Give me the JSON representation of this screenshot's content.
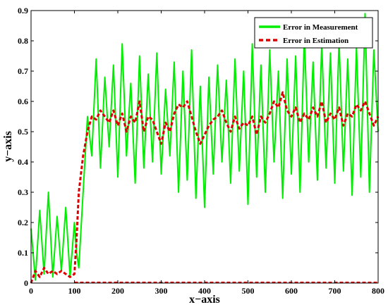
{
  "chart_data": {
    "type": "line",
    "xlabel": "x−axis",
    "ylabel": "y−axis",
    "xlim": [
      0,
      800
    ],
    "ylim": [
      0,
      0.9
    ],
    "grid": false,
    "legend_position": "top-right",
    "x_ticks": [
      0,
      100,
      200,
      300,
      400,
      500,
      600,
      700,
      800
    ],
    "x_tick_labels": [
      "0",
      "100",
      "200",
      "300",
      "400",
      "500",
      "600",
      "700",
      "800"
    ],
    "y_ticks": [
      0,
      0.1,
      0.2,
      0.3,
      0.4,
      0.5,
      0.6,
      0.7,
      0.8,
      0.9
    ],
    "y_tick_labels": [
      "0",
      "0.1",
      "0.2",
      "0.3",
      "0.4",
      "0.5",
      "0.6",
      "0.7",
      "0.8",
      "0.9"
    ],
    "series": [
      {
        "name": "Error in Measurement",
        "color": "#00ee00",
        "style": "solid",
        "x": [
          0,
          10,
          20,
          30,
          40,
          50,
          60,
          70,
          80,
          90,
          100,
          105,
          110,
          120,
          130,
          140,
          150,
          160,
          170,
          180,
          190,
          200,
          210,
          220,
          230,
          240,
          250,
          260,
          270,
          280,
          290,
          300,
          310,
          320,
          330,
          340,
          350,
          360,
          370,
          380,
          390,
          400,
          410,
          420,
          430,
          440,
          450,
          460,
          470,
          480,
          490,
          500,
          510,
          520,
          530,
          540,
          550,
          560,
          570,
          580,
          590,
          600,
          610,
          620,
          630,
          640,
          650,
          660,
          670,
          680,
          690,
          700,
          710,
          720,
          730,
          740,
          750,
          760,
          770,
          780,
          790,
          800
        ],
        "y": [
          0.18,
          0.01,
          0.24,
          0.03,
          0.3,
          0.02,
          0.22,
          0.04,
          0.25,
          0.02,
          0.2,
          0.1,
          0.05,
          0.3,
          0.55,
          0.42,
          0.74,
          0.38,
          0.68,
          0.45,
          0.72,
          0.35,
          0.79,
          0.42,
          0.66,
          0.33,
          0.75,
          0.38,
          0.69,
          0.4,
          0.76,
          0.36,
          0.64,
          0.42,
          0.73,
          0.3,
          0.7,
          0.34,
          0.77,
          0.28,
          0.65,
          0.25,
          0.68,
          0.36,
          0.72,
          0.4,
          0.67,
          0.33,
          0.74,
          0.37,
          0.7,
          0.26,
          0.79,
          0.35,
          0.72,
          0.3,
          0.77,
          0.4,
          0.7,
          0.28,
          0.74,
          0.36,
          0.75,
          0.3,
          0.82,
          0.4,
          0.73,
          0.34,
          0.79,
          0.38,
          0.76,
          0.33,
          0.8,
          0.37,
          0.74,
          0.29,
          0.78,
          0.35,
          0.89,
          0.3,
          0.77,
          0.5
        ]
      },
      {
        "name": "Error in Estimation",
        "color": "#dd0000",
        "style": "dashed",
        "x": [
          0,
          10,
          20,
          30,
          40,
          50,
          60,
          70,
          80,
          90,
          100,
          105,
          110,
          120,
          130,
          140,
          150,
          160,
          170,
          180,
          190,
          200,
          210,
          220,
          230,
          240,
          250,
          260,
          270,
          280,
          290,
          300,
          310,
          320,
          330,
          340,
          350,
          360,
          370,
          380,
          390,
          400,
          410,
          420,
          430,
          440,
          450,
          460,
          470,
          480,
          490,
          500,
          510,
          520,
          530,
          540,
          550,
          560,
          570,
          580,
          590,
          600,
          610,
          620,
          630,
          640,
          650,
          660,
          670,
          680,
          690,
          700,
          710,
          720,
          730,
          740,
          750,
          760,
          770,
          780,
          790,
          800
        ],
        "y": [
          0.0,
          0.04,
          0.02,
          0.05,
          0.03,
          0.04,
          0.03,
          0.04,
          0.03,
          0.02,
          0.03,
          0.15,
          0.3,
          0.42,
          0.5,
          0.55,
          0.54,
          0.57,
          0.55,
          0.53,
          0.57,
          0.52,
          0.56,
          0.5,
          0.55,
          0.53,
          0.6,
          0.5,
          0.55,
          0.54,
          0.5,
          0.46,
          0.53,
          0.5,
          0.56,
          0.59,
          0.58,
          0.6,
          0.55,
          0.5,
          0.46,
          0.49,
          0.52,
          0.54,
          0.55,
          0.57,
          0.53,
          0.5,
          0.55,
          0.51,
          0.53,
          0.52,
          0.55,
          0.49,
          0.55,
          0.53,
          0.56,
          0.6,
          0.58,
          0.63,
          0.57,
          0.55,
          0.58,
          0.53,
          0.56,
          0.54,
          0.58,
          0.55,
          0.6,
          0.53,
          0.56,
          0.54,
          0.58,
          0.52,
          0.56,
          0.55,
          0.59,
          0.57,
          0.6,
          0.56,
          0.52,
          0.55
        ]
      }
    ]
  }
}
